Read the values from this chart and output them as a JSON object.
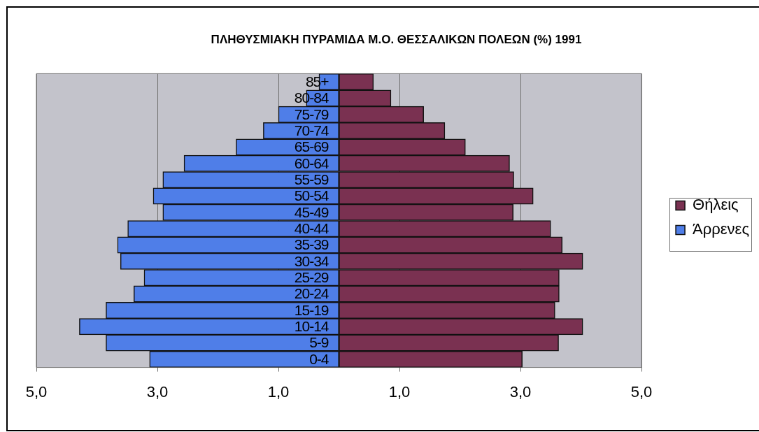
{
  "chart_data": {
    "type": "bar",
    "orientation": "horizontal",
    "stacked": true,
    "title": "ΠΛΗΘΥΣΜΙΑΚΗ ΠΥΡΑΜΙΔΑ Μ.Ο. ΘΕΣΣΑΛΙΚΩΝ ΠΟΛΕΩΝ (%) 1991",
    "categories": [
      "85+",
      "80-84",
      "75-79",
      "70-74",
      "65-69",
      "60-64",
      "55-59",
      "50-54",
      "45-49",
      "40-44",
      "35-39",
      "30-34",
      "25-29",
      "20-24",
      "15-19",
      "10-14",
      "5-9",
      "0-4"
    ],
    "series": [
      {
        "name": "Θήλεις",
        "color": "#7a3151",
        "values": [
          0.57,
          0.86,
          1.4,
          1.75,
          2.09,
          2.82,
          2.89,
          3.21,
          2.88,
          3.5,
          3.69,
          4.03,
          3.64,
          3.64,
          3.57,
          4.03,
          3.63,
          3.03
        ]
      },
      {
        "name": "Άρρενες",
        "color": "#4f7ee8",
        "values": [
          -0.33,
          -0.54,
          -1.0,
          -1.25,
          -1.7,
          -2.56,
          -2.91,
          -3.07,
          -2.91,
          -3.49,
          -3.66,
          -3.61,
          -3.22,
          -3.39,
          -3.85,
          -4.29,
          -3.85,
          -3.13
        ]
      }
    ],
    "xlim": [
      -5,
      5
    ],
    "xticks": [
      {
        "value": -5,
        "label": "5,0"
      },
      {
        "value": -3,
        "label": "3,0"
      },
      {
        "value": -1,
        "label": "1,0"
      },
      {
        "value": 1,
        "label": "1,0"
      },
      {
        "value": 3,
        "label": "3,0"
      },
      {
        "value": 5,
        "label": "5,0"
      }
    ],
    "grid": "x",
    "legend": "right"
  }
}
